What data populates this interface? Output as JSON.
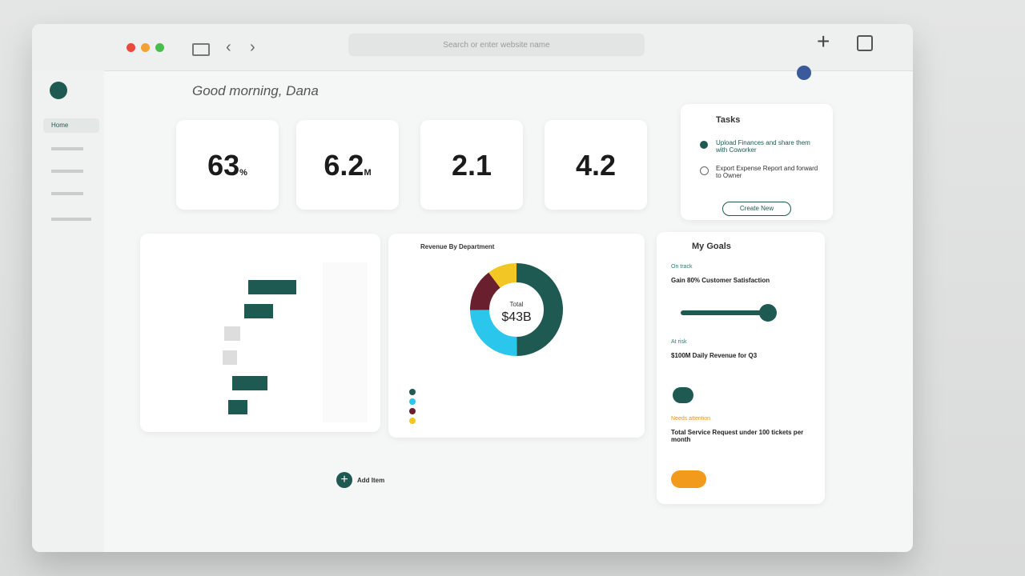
{
  "browser": {
    "search": "Search or enter website name"
  },
  "header": {
    "greeting": "Good morning, Dana"
  },
  "sidebar": {
    "items": [
      "Home"
    ]
  },
  "kpis": [
    {
      "value": "63",
      "unit": "%"
    },
    {
      "value": "6.2",
      "unit": "M"
    },
    {
      "value": "2.1"
    },
    {
      "value": "4.2"
    }
  ],
  "tasks": {
    "title": "Tasks",
    "items": [
      "Upload Finances and share them with Coworker",
      "Export Expense Report and forward to Owner"
    ],
    "button": "Create New"
  },
  "revenue": {
    "title": "Revenue By Department",
    "total_label": "Total",
    "total": "$43B"
  },
  "goals": {
    "title": "My Goals",
    "items": [
      {
        "status": "On track",
        "title": "Gain 80% Customer Satisfaction"
      },
      {
        "status": "At risk",
        "title": "$100M Daily Revenue for Q3"
      },
      {
        "status": "Needs attention",
        "title": "Total Service Request under 100 tickets per month"
      }
    ]
  },
  "add_item": "Add Item"
}
